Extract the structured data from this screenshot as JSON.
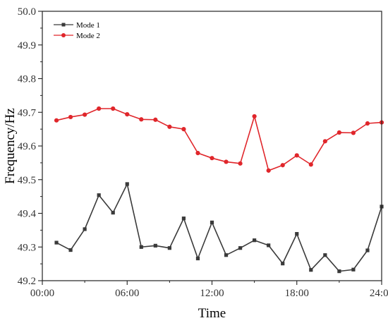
{
  "chart_data": {
    "type": "line",
    "xlabel": "Time",
    "ylabel": "Frequency/Hz",
    "xlim": [
      0,
      24
    ],
    "ylim": [
      49.2,
      50.0
    ],
    "x_ticks": [
      0,
      6,
      12,
      18,
      24
    ],
    "x_tick_labels": [
      "00:00",
      "06:00",
      "12:00",
      "18:00",
      "24:00"
    ],
    "y_ticks": [
      49.2,
      49.3,
      49.4,
      49.5,
      49.6,
      49.7,
      49.8,
      49.9,
      50.0
    ],
    "y_tick_labels": [
      "49.2",
      "49.3",
      "49.4",
      "49.5",
      "49.6",
      "49.7",
      "49.8",
      "49.9",
      "50.0"
    ],
    "grid": false,
    "legend_position": "top-left",
    "x": [
      1,
      2,
      3,
      4,
      5,
      6,
      7,
      8,
      9,
      10,
      11,
      12,
      13,
      14,
      15,
      16,
      17,
      18,
      19,
      20,
      21,
      22,
      23,
      24
    ],
    "series": [
      {
        "name": "Mode 1",
        "color": "#3a3a3a",
        "marker": "square",
        "values": [
          49.313,
          49.291,
          49.353,
          49.454,
          49.402,
          49.487,
          49.3,
          49.304,
          49.297,
          49.385,
          49.266,
          49.373,
          49.276,
          49.297,
          49.32,
          49.305,
          49.251,
          49.339,
          49.232,
          49.276,
          49.228,
          49.233,
          49.29,
          49.42
        ]
      },
      {
        "name": "Mode 2",
        "color": "#e0262b",
        "marker": "circle",
        "values": [
          49.676,
          49.686,
          49.693,
          49.711,
          49.711,
          49.694,
          49.679,
          49.678,
          49.657,
          49.65,
          49.579,
          49.564,
          49.553,
          49.548,
          49.688,
          49.527,
          49.543,
          49.572,
          49.545,
          49.614,
          49.64,
          49.639,
          49.667,
          49.67
        ]
      }
    ]
  }
}
